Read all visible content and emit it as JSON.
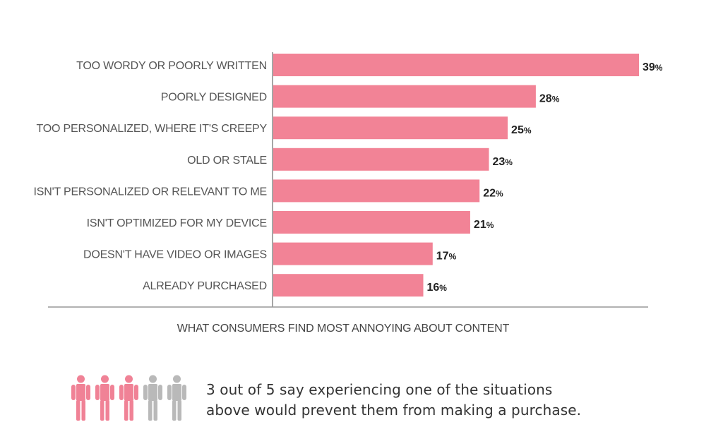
{
  "chart_data": {
    "type": "bar",
    "orientation": "horizontal",
    "categories": [
      "TOO WORDY OR POORLY WRITTEN",
      "POORLY DESIGNED",
      "TOO PERSONALIZED, WHERE IT'S CREEPY",
      "OLD OR STALE",
      "ISN'T PERSONALIZED OR RELEVANT TO ME",
      "ISN'T OPTIMIZED FOR MY DEVICE",
      "DOESN'T HAVE VIDEO OR IMAGES",
      "ALREADY PURCHASED"
    ],
    "values": [
      39,
      28,
      25,
      23,
      22,
      21,
      17,
      16
    ],
    "value_labels": [
      "39",
      "28",
      "25",
      "23",
      "22",
      "21",
      "17",
      "16"
    ],
    "value_suffix": "%",
    "xlabel": "WHAT CONSUMERS FIND MOST ANNOYING ABOUT CONTENT",
    "xlim": [
      0,
      39
    ],
    "bar_color": "#f28396",
    "grid": false
  },
  "stat": {
    "line1": "3 out of 5 say experiencing one of the situations",
    "line2": "above would prevent them from making a purchase."
  },
  "people": {
    "icon": "person-icon",
    "highlighted": 3,
    "total": 5,
    "highlight_color": "#f08296",
    "muted_color": "#b9b9b9"
  }
}
